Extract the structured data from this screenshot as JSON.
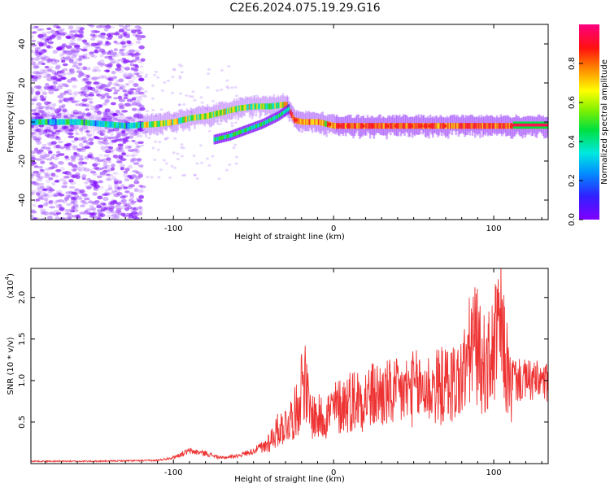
{
  "title": "C2E6.2024.075.19.29.G16",
  "colors": {
    "snr_line": "#ee3333",
    "axis": "#000000"
  },
  "chart_data": [
    {
      "type": "heatmap",
      "xlabel": "Height of straight line (km)",
      "ylabel": "Frequency (Hz)",
      "xlim": [
        -189,
        134
      ],
      "ylim": [
        -50,
        50
      ],
      "xticks": [
        -100,
        0,
        100
      ],
      "yticks": [
        -40,
        -20,
        0,
        20,
        40
      ],
      "colorbar": {
        "label": "Normalized spectral amplitude",
        "range": [
          0,
          1
        ],
        "ticks": [
          0.0,
          0.2,
          0.4,
          0.6,
          0.8
        ],
        "colormap": "rainbow (purple to red to pink)"
      },
      "main_track": [
        [
          -189,
          0
        ],
        [
          -160,
          0
        ],
        [
          -130,
          -2
        ],
        [
          -110,
          -1
        ],
        [
          -100,
          0
        ],
        [
          -90,
          2
        ],
        [
          -80,
          3
        ],
        [
          -70,
          5
        ],
        [
          -60,
          7
        ],
        [
          -50,
          8
        ],
        [
          -40,
          8
        ],
        [
          -30,
          9
        ],
        [
          -25,
          1
        ],
        [
          -20,
          0
        ],
        [
          -10,
          0
        ],
        [
          0,
          -2
        ],
        [
          20,
          -2
        ],
        [
          60,
          -2
        ],
        [
          100,
          -2
        ],
        [
          134,
          -2
        ]
      ],
      "secondary_track": [
        [
          -75,
          -9
        ],
        [
          -65,
          -7
        ],
        [
          -55,
          -4
        ],
        [
          -45,
          -1
        ],
        [
          -35,
          3
        ],
        [
          -28,
          7
        ]
      ]
    },
    {
      "type": "line",
      "xlabel": "Height of straight line (km)",
      "ylabel": "SNR (10 * v/v)",
      "y_multiplier_label": "(x10",
      "y_multiplier_exp": "4",
      "xlim": [
        -189,
        134
      ],
      "ylim": [
        0,
        23500
      ],
      "xticks": [
        -100,
        0,
        100
      ],
      "yticks": [
        0.5,
        1.0,
        1.5,
        2.0
      ],
      "y_units": "x10^4",
      "series": [
        {
          "envelope": [
            [
              -189,
              300
            ],
            [
              -150,
              300
            ],
            [
              -110,
              400
            ],
            [
              -100,
              800
            ],
            [
              -90,
              1600
            ],
            [
              -80,
              1300
            ],
            [
              -70,
              700
            ],
            [
              -60,
              1000
            ],
            [
              -50,
              1600
            ],
            [
              -45,
              2200
            ],
            [
              -40,
              3800
            ],
            [
              -35,
              5500
            ],
            [
              -30,
              6500
            ],
            [
              -25,
              8000
            ],
            [
              -22,
              9500
            ],
            [
              -19,
              15500
            ],
            [
              -15,
              8500
            ],
            [
              -10,
              7500
            ],
            [
              -5,
              8000
            ],
            [
              0,
              9000
            ],
            [
              10,
              10500
            ],
            [
              20,
              11000
            ],
            [
              30,
              11500
            ],
            [
              40,
              11500
            ],
            [
              50,
              12500
            ],
            [
              60,
              12500
            ],
            [
              70,
              13000
            ],
            [
              80,
              14000
            ],
            [
              85,
              18500
            ],
            [
              88,
              21000
            ],
            [
              92,
              17000
            ],
            [
              96,
              16000
            ],
            [
              100,
              19000
            ],
            [
              104,
              23000
            ],
            [
              108,
              16000
            ],
            [
              111,
              12000
            ],
            [
              114,
              10500
            ],
            [
              120,
              10500
            ],
            [
              134,
              10200
            ]
          ]
        }
      ]
    }
  ]
}
